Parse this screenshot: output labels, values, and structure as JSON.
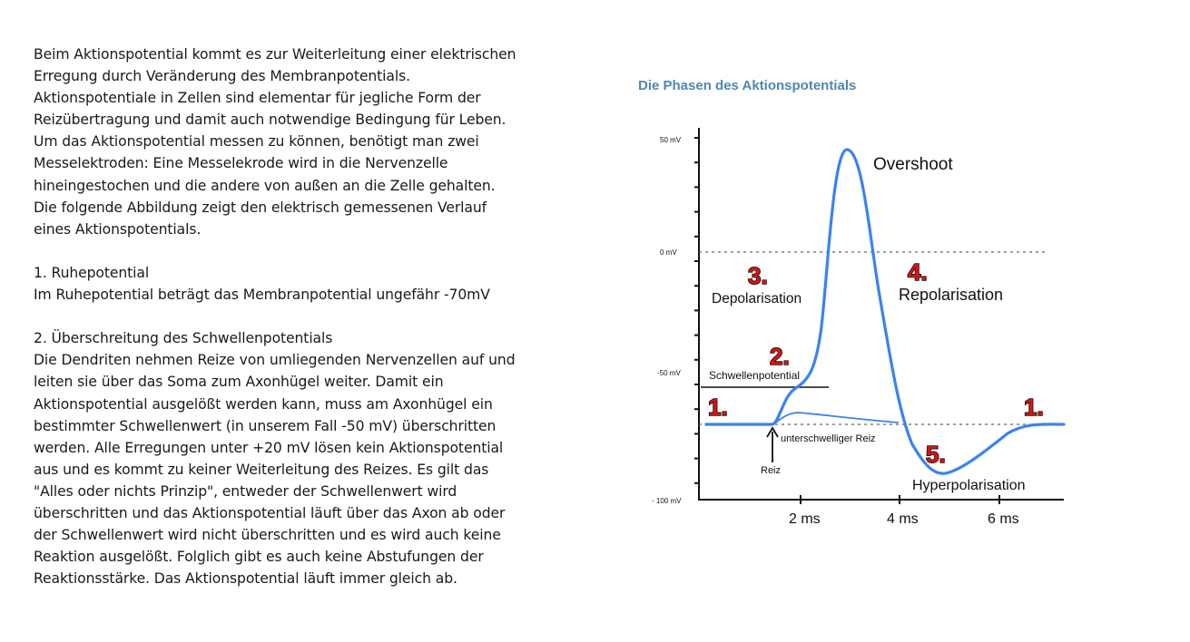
{
  "text": {
    "intro_lines": [
      "Beim Aktionspotential kommt es zur Weiterleitung einer elektrischen",
      "Erregung durch Veränderung des Membranpotentials.",
      "Aktionspotentiale in Zellen sind elementar für jegliche Form der",
      "Reizübertragung und damit auch notwendige Bedingung für Leben.",
      "Um das Aktionspotential messen zu können, benötigt man zwei",
      "Messelektroden: Eine Messelekrode wird in die Nervenzelle",
      "hineingestochen und die andere von außen an die Zelle gehalten.",
      "Die folgende Abbildung zeigt den elektrisch gemessenen Verlauf",
      "eines Aktionspotentials."
    ],
    "section1_heading": "1. Ruhepotential",
    "section1_body": "Im Ruhepotential beträgt das Membranpotential ungefähr -70mV",
    "section2_heading": "2. Überschreitung des Schwellenpotentials",
    "section2_lines": [
      "Die Dendriten nehmen Reize von umliegenden Nervenzellen auf und",
      "leiten sie über das Soma zum Axonhügel weiter. Damit ein",
      "Aktionspotential ausgelößt werden kann, muss am Axonhügel ein",
      "bestimmter Schwellenwert (in unserem Fall -50 mV) überschritten",
      "werden. Alle Erregungen unter +20 mV lösen kein Aktionspotential",
      "aus und es kommt zu keiner Weiterleitung des Reizes. Es gilt das",
      "\"Alles oder nichts Prinzip\", entweder der Schwellenwert wird",
      "überschritten und das Aktionspotential läuft über das Axon ab oder",
      "der Schwellenwert wird nicht überschritten und es wird auch keine",
      "Reaktion ausgelößt. Folglich gibt es auch keine Abstufungen der",
      "Reaktionsstärke. Das Aktionspotential läuft immer gleich ab."
    ]
  },
  "figure": {
    "title": "Die Phasen des Aktionspotentials",
    "y_tick_labels": [
      "50 mV",
      "0 mV",
      "-50 mV",
      "- 100 mV"
    ],
    "x_tick_labels": [
      "2 ms",
      "4 ms",
      "6 ms"
    ],
    "labels": {
      "overshoot": "Overshoot",
      "depolarisation": "Depolarisation",
      "repolarisation": "Repolarisation",
      "schwellenpotential": "Schwellenpotential",
      "unterschwelliger": "unterschwelliger Reiz",
      "reiz": "Reiz",
      "hyperpolarisation": "Hyperpolarisation"
    },
    "phase_numbers": {
      "p1_left": "1.",
      "p1_right": "1.",
      "p2": "2.",
      "p3": "3.",
      "p4": "4.",
      "p5": "5."
    },
    "colors": {
      "curve": "#3b82f0",
      "title": "#4f86b0",
      "number_fill": "#d41414",
      "axis": "#111111"
    }
  }
}
